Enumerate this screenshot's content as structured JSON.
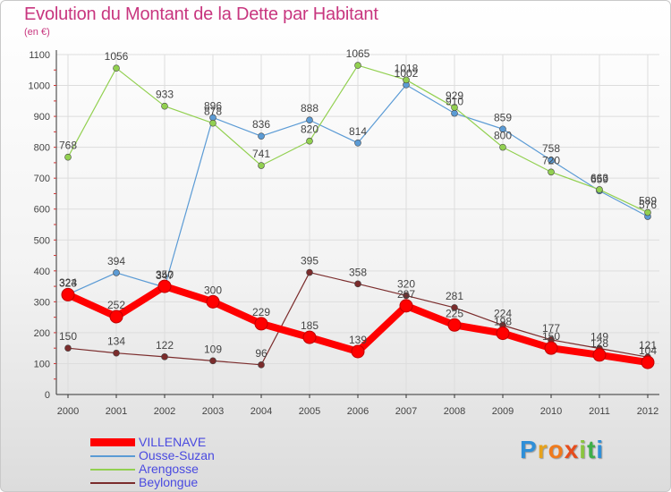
{
  "title": "Evolution du Montant de la Dette par Habitant",
  "unit": "(en €)",
  "logo": "Proxiti",
  "chart_data": {
    "type": "line",
    "title": "Evolution du Montant de la Dette par Habitant",
    "subtitle": "(en €)",
    "xlabel": "",
    "ylabel": "",
    "categories": [
      "2000",
      "2001",
      "2002",
      "2003",
      "2004",
      "2005",
      "2006",
      "2007",
      "2008",
      "2009",
      "2010",
      "2011",
      "2012"
    ],
    "ylim": [
      0,
      1100
    ],
    "yticks": [
      0,
      100,
      200,
      300,
      400,
      500,
      600,
      700,
      800,
      900,
      1000,
      1100
    ],
    "grid": true,
    "legend_position": "bottom-left",
    "series": [
      {
        "name": "VILLENAVE",
        "color": "#ff0000",
        "values": [
          323,
          252,
          350,
          300,
          229,
          185,
          139,
          287,
          225,
          198,
          150,
          128,
          104
        ]
      },
      {
        "name": "Ousse-Suzan",
        "color": "#5b9bd5",
        "values": [
          324,
          394,
          347,
          896,
          836,
          888,
          814,
          1002,
          910,
          859,
          758,
          659,
          576
        ]
      },
      {
        "name": "Arengosse",
        "color": "#92d050",
        "values": [
          768,
          1056,
          933,
          878,
          741,
          820,
          1065,
          1018,
          929,
          800,
          720,
          663,
          589
        ]
      },
      {
        "name": "Beylongue",
        "color": "#7b2c2c",
        "values": [
          150,
          134,
          122,
          109,
          96,
          395,
          358,
          320,
          281,
          224,
          177,
          149,
          121
        ]
      }
    ]
  }
}
